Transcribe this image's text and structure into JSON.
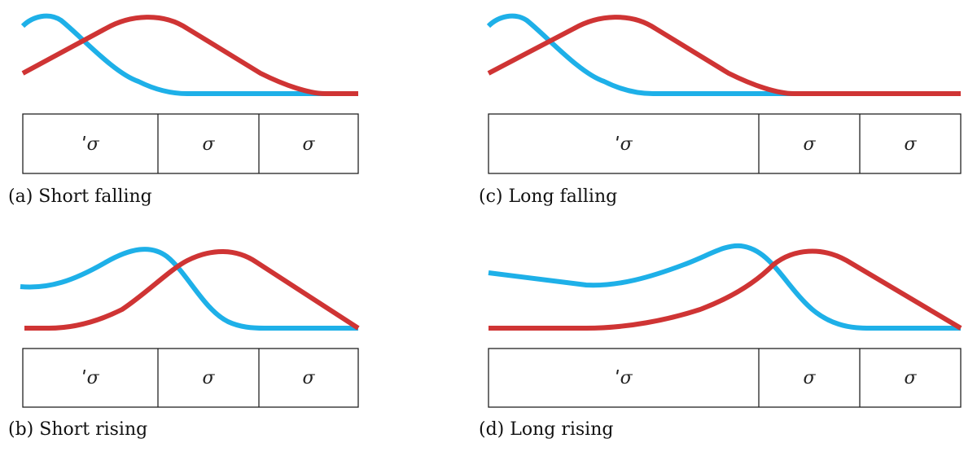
{
  "panels": [
    {
      "caption": "(a) Short falling",
      "cells": [
        "ˈσ",
        "σ",
        "σ"
      ]
    },
    {
      "caption": "(b) Short rising",
      "cells": [
        "ˈσ",
        "σ",
        "σ"
      ]
    },
    {
      "caption": "(c) Long falling",
      "cells": [
        "ˈσ",
        "σ",
        "σ"
      ]
    },
    {
      "caption": "(d) Long rising",
      "cells": [
        "ˈσ",
        "σ",
        "σ"
      ]
    }
  ]
}
